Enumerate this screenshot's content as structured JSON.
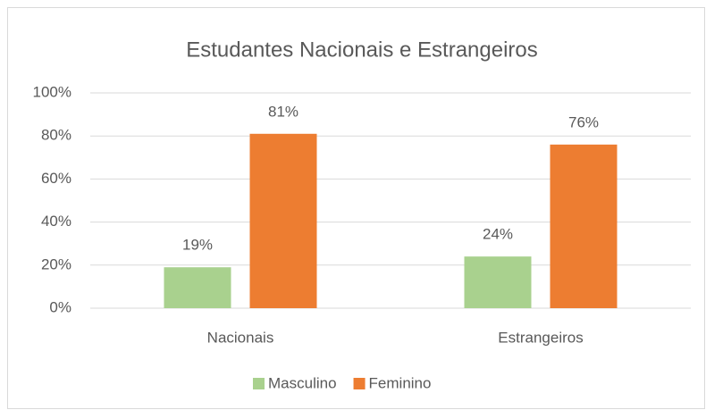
{
  "chart_data": {
    "type": "bar",
    "title": "Estudantes Nacionais e Estrangeiros",
    "categories": [
      "Nacionais",
      "Estrangeiros"
    ],
    "series": [
      {
        "name": "Masculino",
        "color": "#a9d18e",
        "values": [
          19,
          24
        ],
        "value_labels": [
          "19%",
          "24%"
        ]
      },
      {
        "name": "Feminino",
        "color": "#ed7d31",
        "values": [
          81,
          76
        ],
        "value_labels": [
          "81%",
          "76%"
        ]
      }
    ],
    "ylim": [
      0,
      100
    ],
    "yticks": [
      {
        "value": 0,
        "label": "0%"
      },
      {
        "value": 20,
        "label": "20%"
      },
      {
        "value": 40,
        "label": "40%"
      },
      {
        "value": 60,
        "label": "60%"
      },
      {
        "value": 80,
        "label": "80%"
      },
      {
        "value": 100,
        "label": "100%"
      }
    ],
    "grid": true,
    "legend": "bottom"
  }
}
